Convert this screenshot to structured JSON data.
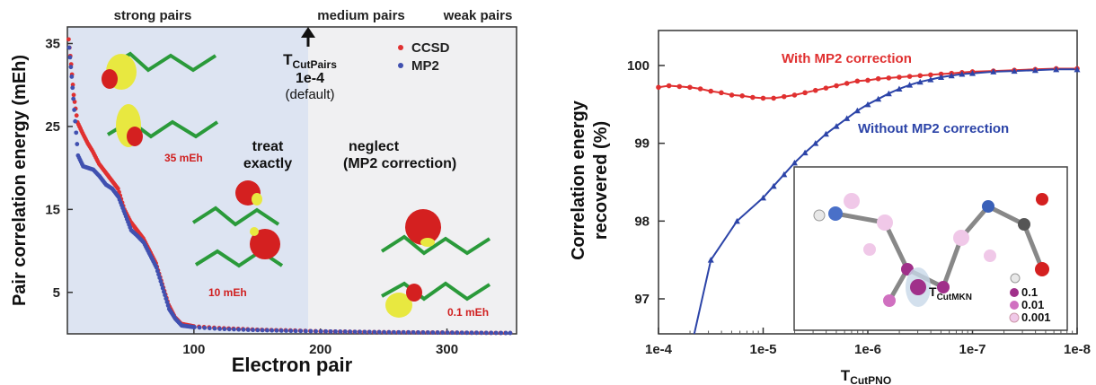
{
  "chart_data": [
    {
      "type": "scatter",
      "xlabel": "Electron pair",
      "ylabel": "Pair correlation energy (mEh)",
      "xlim": [
        0,
        355
      ],
      "ylim": [
        0,
        37
      ],
      "x_ticks": [
        "100",
        "200",
        "300"
      ],
      "y_ticks": [
        "5",
        "15",
        "25",
        "35"
      ],
      "grid": false,
      "legend_position": "top-right",
      "series": [
        {
          "name": "CCSD",
          "color": "#e03030",
          "x": [
            1,
            3,
            5,
            8,
            12,
            16,
            20,
            25,
            30,
            35,
            40,
            45,
            50,
            55,
            60,
            65,
            70,
            75,
            80,
            85,
            90,
            100,
            120,
            150,
            180,
            200,
            250,
            300,
            350
          ],
          "values": [
            35.5,
            32.5,
            28.8,
            25.5,
            24.2,
            23.0,
            22.0,
            20.5,
            19.5,
            18.5,
            17.5,
            15.0,
            13.5,
            12.5,
            11.5,
            10.0,
            8.5,
            6.0,
            3.5,
            2.0,
            1.2,
            0.9,
            0.7,
            0.5,
            0.4,
            0.3,
            0.2,
            0.15,
            0.1
          ]
        },
        {
          "name": "MP2",
          "color": "#4050b0",
          "x": [
            1,
            3,
            5,
            8,
            12,
            16,
            20,
            25,
            30,
            35,
            40,
            45,
            50,
            55,
            60,
            65,
            70,
            75,
            80,
            85,
            90,
            100,
            120,
            150,
            180,
            200,
            250,
            300,
            350
          ],
          "values": [
            34.5,
            31.0,
            27.0,
            21.5,
            20.2,
            20.0,
            19.8,
            19.0,
            18.0,
            17.5,
            16.5,
            14.5,
            12.5,
            11.8,
            11.0,
            9.5,
            8.0,
            5.5,
            3.0,
            1.8,
            1.0,
            0.8,
            0.6,
            0.45,
            0.35,
            0.3,
            0.2,
            0.15,
            0.1
          ]
        }
      ],
      "regions": [
        {
          "label": "strong pairs"
        },
        {
          "label": "medium pairs"
        },
        {
          "label": "weak pairs"
        }
      ],
      "threshold": {
        "x": 188,
        "name": "T",
        "subscript": "CutPairs",
        "value": "1e-4",
        "note": "(default)"
      },
      "annotations": {
        "treat": [
          "treat",
          "exactly"
        ],
        "neglect": [
          "neglect",
          "(MP2 correction)"
        ],
        "energies": [
          "35 mEh",
          "10 mEh",
          "0.1 mEh"
        ]
      }
    },
    {
      "type": "line",
      "xlabel": "T",
      "xlabel_subscript": "CutPNO",
      "ylabel": [
        "Correlation energy",
        "recovered (%)"
      ],
      "x_ticks": [
        "1e-4",
        "1e-5",
        "1e-6",
        "1e-7",
        "1e-8"
      ],
      "x_log_exponents": [
        4,
        5,
        6,
        7,
        8
      ],
      "xlim_exp": [
        4,
        8
      ],
      "ylim": [
        96.55,
        100.45
      ],
      "y_ticks": [
        "97",
        "98",
        "99",
        "100"
      ],
      "grid": false,
      "series": [
        {
          "name": "With MP2 correction",
          "color": "#e03030",
          "marker": "circle",
          "x_exp": [
            4.0,
            4.1,
            4.2,
            4.3,
            4.4,
            4.5,
            4.6,
            4.7,
            4.8,
            4.9,
            5.0,
            5.1,
            5.2,
            5.3,
            5.4,
            5.5,
            5.6,
            5.7,
            5.8,
            5.9,
            6.0,
            6.1,
            6.2,
            6.3,
            6.4,
            6.5,
            6.6,
            6.7,
            6.8,
            6.9,
            7.0,
            7.2,
            7.4,
            7.6,
            7.8,
            8.0
          ],
          "values": [
            99.72,
            99.74,
            99.73,
            99.72,
            99.7,
            99.67,
            99.65,
            99.62,
            99.61,
            99.59,
            99.58,
            99.58,
            99.6,
            99.62,
            99.65,
            99.68,
            99.71,
            99.74,
            99.77,
            99.8,
            99.81,
            99.83,
            99.84,
            99.85,
            99.86,
            99.87,
            99.88,
            99.89,
            99.9,
            99.91,
            99.92,
            99.93,
            99.94,
            99.95,
            99.96,
            99.96
          ]
        },
        {
          "name": "Without MP2 correction",
          "color": "#2c44a8",
          "marker": "triangle",
          "x_exp": [
            4.5,
            4.75,
            5.0,
            5.1,
            5.2,
            5.3,
            5.4,
            5.5,
            5.6,
            5.7,
            5.8,
            5.9,
            6.0,
            6.1,
            6.2,
            6.3,
            6.4,
            6.5,
            6.6,
            6.7,
            6.8,
            6.9,
            7.0,
            7.2,
            7.4,
            7.6,
            7.8,
            8.0
          ],
          "values": [
            97.5,
            98.0,
            98.3,
            98.45,
            98.6,
            98.75,
            98.88,
            99.0,
            99.12,
            99.22,
            99.32,
            99.42,
            99.5,
            99.57,
            99.64,
            99.7,
            99.75,
            99.79,
            99.82,
            99.85,
            99.87,
            99.89,
            99.9,
            99.92,
            99.93,
            99.94,
            99.95,
            99.95
          ]
        }
      ],
      "inset": {
        "label": "T",
        "label_subscript": "CutMKN",
        "legend": [
          {
            "value": "0.1",
            "color": "#a0308a"
          },
          {
            "value": "0.01",
            "color": "#d070c0"
          },
          {
            "value": "0.001",
            "color": "#f0c8e8"
          }
        ]
      }
    }
  ]
}
